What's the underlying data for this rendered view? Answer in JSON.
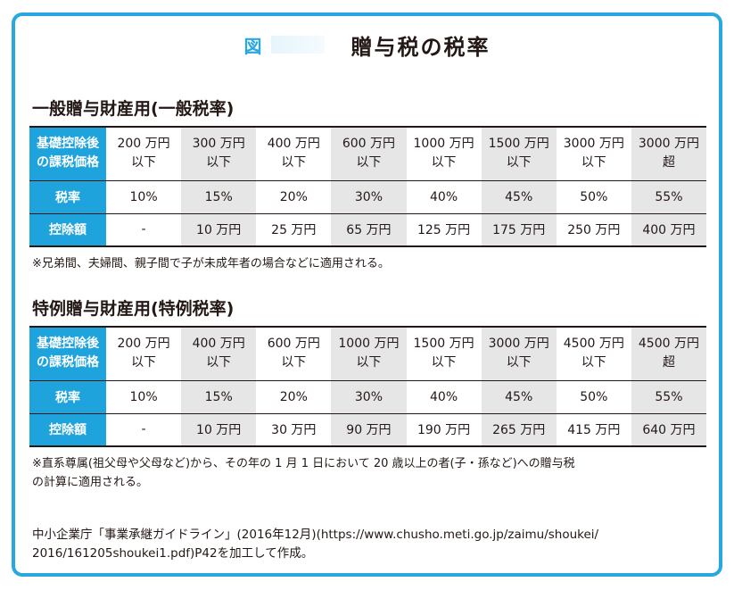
{
  "figure": {
    "label": "図",
    "title": "贈与税の税率"
  },
  "general": {
    "title": "一般贈与財産用(一般税率)",
    "row_header_base_line1": "基礎控除後",
    "row_header_base_line2": "の課税価格",
    "row_header_rate": "税率",
    "row_header_deduction": "控除額",
    "brackets": [
      {
        "line1": "200 万円",
        "line2": "以下"
      },
      {
        "line1": "300 万円",
        "line2": "以下"
      },
      {
        "line1": "400 万円",
        "line2": "以下"
      },
      {
        "line1": "600 万円",
        "line2": "以下"
      },
      {
        "line1": "1000 万円",
        "line2": "以下"
      },
      {
        "line1": "1500 万円",
        "line2": "以下"
      },
      {
        "line1": "3000 万円",
        "line2": "以下"
      },
      {
        "line1": "3000 万円",
        "line2": "超"
      }
    ],
    "rates": [
      "10%",
      "15%",
      "20%",
      "30%",
      "40%",
      "45%",
      "50%",
      "55%"
    ],
    "deductions": [
      "-",
      "10 万円",
      "25 万円",
      "65 万円",
      "125 万円",
      "175 万円",
      "250 万円",
      "400 万円"
    ],
    "note": "※兄弟間、夫婦間、親子間で子が未成年者の場合などに適用される。"
  },
  "special": {
    "title": "特例贈与財産用(特例税率)",
    "row_header_base_line1": "基礎控除後",
    "row_header_base_line2": "の課税価格",
    "row_header_rate": "税率",
    "row_header_deduction": "控除額",
    "brackets": [
      {
        "line1": "200 万円",
        "line2": "以下"
      },
      {
        "line1": "400 万円",
        "line2": "以下"
      },
      {
        "line1": "600 万円",
        "line2": "以下"
      },
      {
        "line1": "1000 万円",
        "line2": "以下"
      },
      {
        "line1": "1500 万円",
        "line2": "以下"
      },
      {
        "line1": "3000 万円",
        "line2": "以下"
      },
      {
        "line1": "4500 万円",
        "line2": "以下"
      },
      {
        "line1": "4500 万円",
        "line2": "超"
      }
    ],
    "rates": [
      "10%",
      "15%",
      "20%",
      "30%",
      "40%",
      "45%",
      "50%",
      "55%"
    ],
    "deductions": [
      "-",
      "10 万円",
      "30 万円",
      "90 万円",
      "190 万円",
      "265 万円",
      "415 万円",
      "640 万円"
    ],
    "note_line1": "※直系尊属(祖父母や父母など)から、その年の 1 月 1 日において 20 歳以上の者(子・孫など)への贈与税",
    "note_line2": "の計算に適用される。"
  },
  "source": {
    "line1": "中小企業庁「事業承継ガイドライン」(2016年12月)(https://www.chusho.meti.go.jp/zaimu/shoukei/",
    "line2": "2016/161205shoukei1.pdf)P42を加工して作成。"
  },
  "colors": {
    "frame": "#29a8e0",
    "header_fill": "#1fa3dd",
    "shade": "#e6e6e7"
  }
}
